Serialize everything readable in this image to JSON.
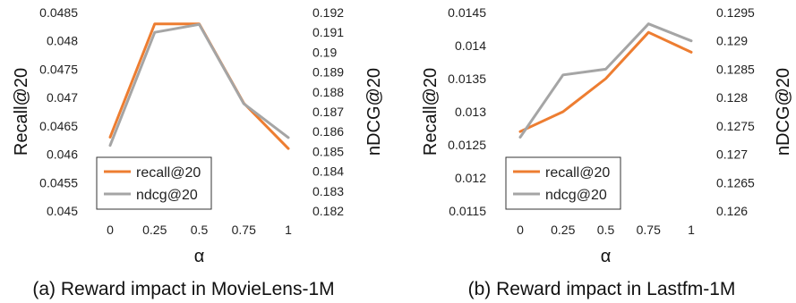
{
  "chart_data": [
    {
      "type": "line",
      "caption": "(a) Reward impact in MovieLens-1M",
      "xlabel": "α",
      "ylabel_left": "Recall@20",
      "ylabel_right": "nDCG@20",
      "x": [
        "0",
        "0.25",
        "0.5",
        "0.75",
        "1"
      ],
      "yticks_left": [
        "0.045",
        "0.0455",
        "0.046",
        "0.0465",
        "0.047",
        "0.0475",
        "0.048",
        "0.0485"
      ],
      "yticks_right": [
        "0.182",
        "0.183",
        "0.184",
        "0.185",
        "0.186",
        "0.187",
        "0.188",
        "0.189",
        "0.19",
        "0.191",
        "0.192"
      ],
      "ylim_left": [
        0.045,
        0.0485
      ],
      "ylim_right": [
        0.182,
        0.192
      ],
      "legend": "lower-left",
      "series": [
        {
          "name": "recall@20",
          "axis": "left",
          "color": "#ED7D31",
          "values": [
            0.0463,
            0.0483,
            0.0483,
            0.0469,
            0.0461
          ]
        },
        {
          "name": "ndcg@20",
          "axis": "right",
          "color": "#A5A5A5",
          "values": [
            0.1853,
            0.191,
            0.1914,
            0.1874,
            0.1857
          ]
        }
      ]
    },
    {
      "type": "line",
      "caption": "(b) Reward impact in Lastfm-1M",
      "xlabel": "α",
      "ylabel_left": "Recall@20",
      "ylabel_right": "nDCG@20",
      "x": [
        "0",
        "0.25",
        "0.5",
        "0.75",
        "1"
      ],
      "yticks_left": [
        "0.0115",
        "0.012",
        "0.0125",
        "0.013",
        "0.0135",
        "0.014",
        "0.0145"
      ],
      "yticks_right": [
        "0.126",
        "0.1265",
        "0.127",
        "0.1275",
        "0.128",
        "0.1285",
        "0.129",
        "0.1295"
      ],
      "ylim_left": [
        0.0115,
        0.0145
      ],
      "ylim_right": [
        0.126,
        0.1295
      ],
      "legend": "lower-left",
      "series": [
        {
          "name": "recall@20",
          "axis": "left",
          "color": "#ED7D31",
          "values": [
            0.0127,
            0.013,
            0.0135,
            0.0142,
            0.0139
          ]
        },
        {
          "name": "ndcg@20",
          "axis": "right",
          "color": "#A5A5A5",
          "values": [
            0.1273,
            0.1284,
            0.1285,
            0.1293,
            0.129
          ]
        }
      ]
    }
  ]
}
